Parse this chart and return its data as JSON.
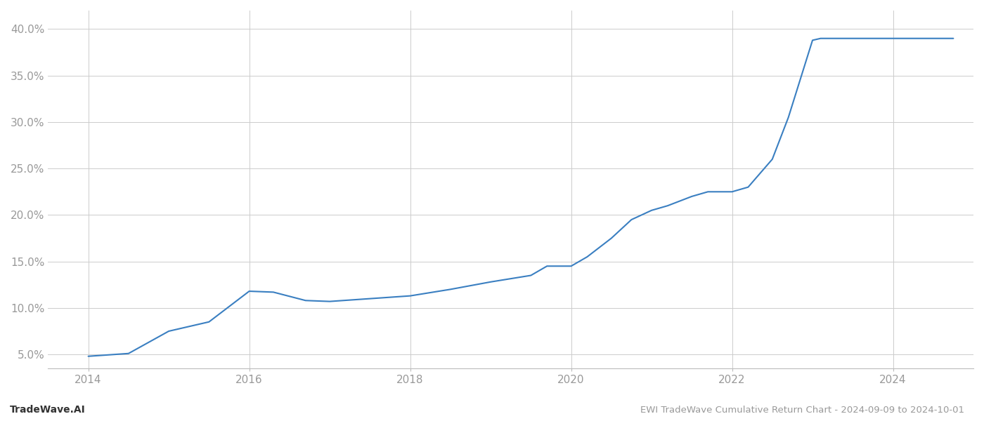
{
  "title": "EWI TradeWave Cumulative Return Chart - 2024-09-09 to 2024-10-01",
  "watermark": "TradeWave.AI",
  "line_color": "#3a7fc1",
  "line_width": 1.5,
  "background_color": "#ffffff",
  "grid_color": "#cccccc",
  "x_years": [
    2014.0,
    2014.5,
    2015.0,
    2015.5,
    2016.0,
    2016.3,
    2016.7,
    2017.0,
    2017.5,
    2018.0,
    2018.5,
    2019.0,
    2019.5,
    2019.7,
    2020.0,
    2020.2,
    2020.5,
    2020.75,
    2021.0,
    2021.2,
    2021.5,
    2021.7,
    2022.0,
    2022.2,
    2022.5,
    2022.7,
    2023.0,
    2023.1,
    2023.5,
    2023.8,
    2024.0,
    2024.5,
    2024.75
  ],
  "y_values": [
    4.8,
    5.1,
    7.5,
    8.5,
    11.8,
    11.7,
    10.8,
    10.7,
    11.0,
    11.3,
    12.0,
    12.8,
    13.5,
    14.5,
    14.5,
    15.5,
    17.5,
    19.5,
    20.5,
    21.0,
    22.0,
    22.5,
    22.5,
    23.0,
    26.0,
    30.5,
    38.8,
    39.0,
    39.0,
    39.0,
    39.0,
    39.0,
    39.0
  ],
  "xlim": [
    2013.5,
    2025.0
  ],
  "ylim": [
    3.5,
    42.0
  ],
  "yticks": [
    5.0,
    10.0,
    15.0,
    20.0,
    25.0,
    30.0,
    35.0,
    40.0
  ],
  "xticks": [
    2014,
    2016,
    2018,
    2020,
    2022,
    2024
  ],
  "tick_label_color": "#999999",
  "tick_label_fontsize": 11,
  "footer_fontsize": 9.5,
  "watermark_fontsize": 10
}
